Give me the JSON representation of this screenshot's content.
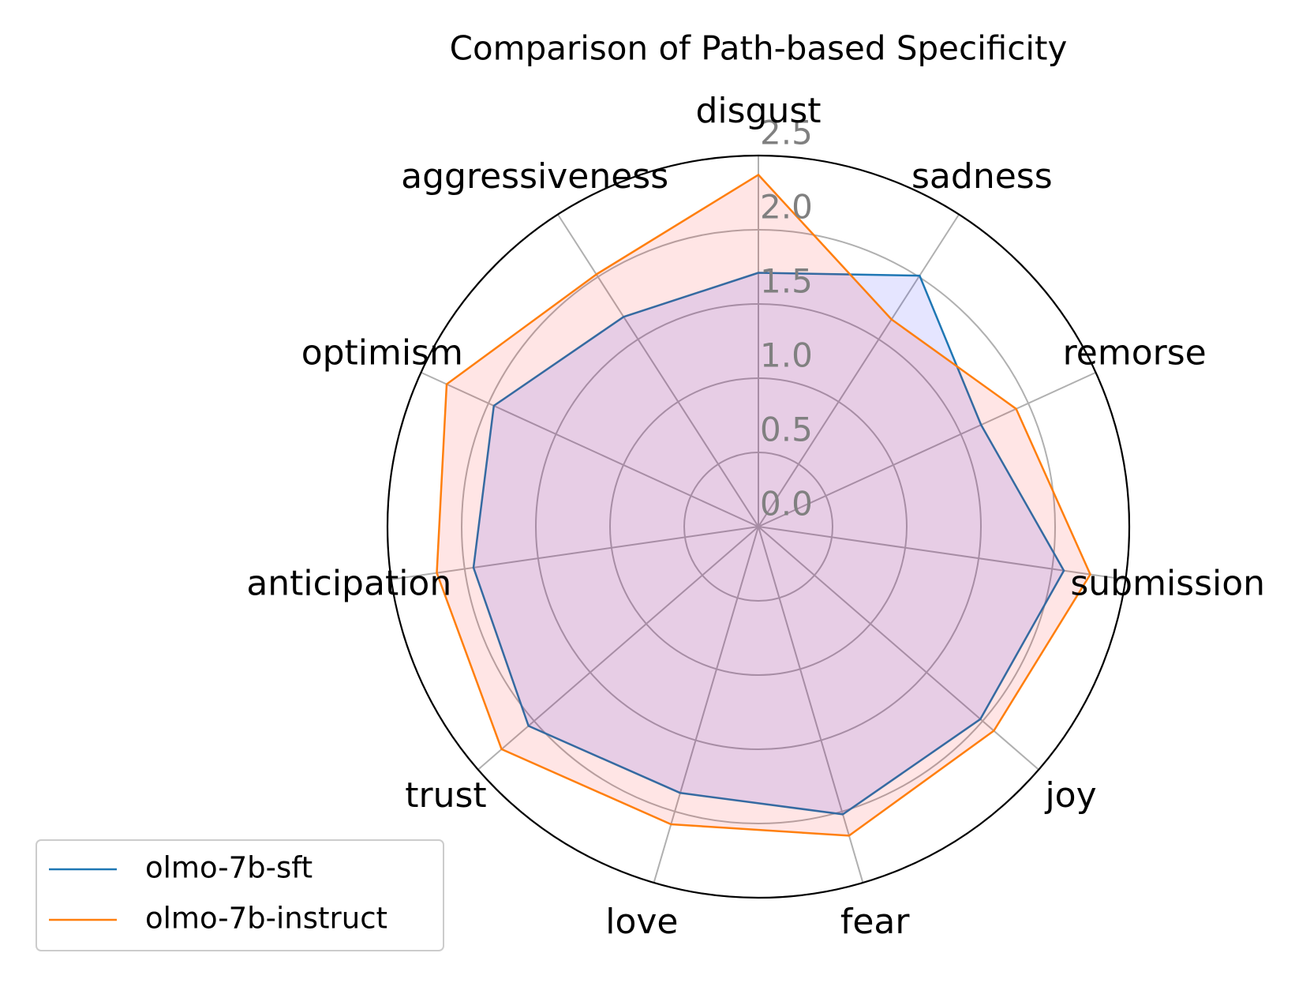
{
  "chart_data": {
    "type": "radar",
    "title": "Comparison of Path-based Specificity",
    "categories": [
      "disgust",
      "sadness",
      "remorse",
      "submission",
      "joy",
      "fear",
      "love",
      "trust",
      "anticipation",
      "optimism",
      "aggressiveness"
    ],
    "series": [
      {
        "name": "olmo-7b-sft",
        "color": "#1f77b4",
        "fill_color": "#0000ff",
        "values": [
          1.71,
          2.01,
          1.65,
          2.08,
          1.98,
          2.02,
          1.87,
          2.05,
          1.94,
          1.96,
          1.68
        ]
      },
      {
        "name": "olmo-7b-instruct",
        "color": "#ff7f0e",
        "fill_color": "#ff0000",
        "values": [
          2.37,
          1.66,
          1.91,
          2.26,
          2.1,
          2.17,
          2.09,
          2.29,
          2.19,
          2.31,
          2.02
        ]
      }
    ],
    "ylim": [
      0,
      2.5
    ],
    "yticks": [
      {
        "value": 0,
        "label": "0.0"
      },
      0.5,
      {
        "value": 1,
        "label": "1.0"
      },
      1.5,
      {
        "value": 2,
        "label": "2.0"
      },
      2.5
    ],
    "grid": true,
    "legend": "lower left"
  }
}
